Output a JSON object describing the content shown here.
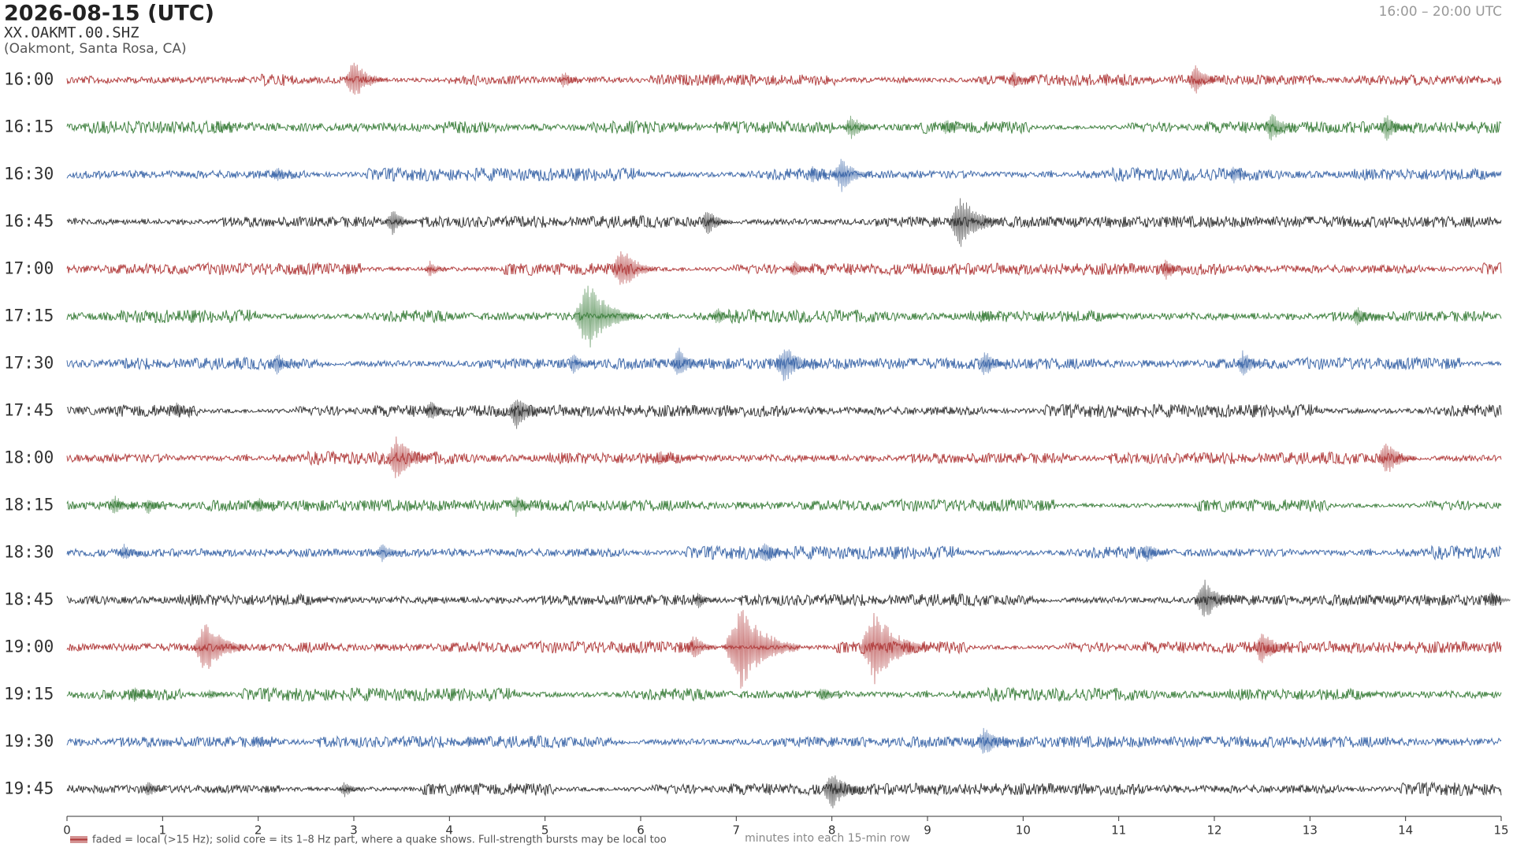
{
  "chart_data": {
    "type": "helicorder",
    "title": "2026-08-15  (UTC)",
    "subtitle": "XX.OAKMT.00.SHZ",
    "location": "(Oakmont, Santa Rosa, CA)",
    "time_range": "16:00 – 20:00 UTC",
    "x_label": "minutes into each 15-min row",
    "note": "faded = local (>15 Hz); solid core = its 1–8 Hz part, where a quake shows. Full-strength bursts may be local too",
    "xlim": [
      0,
      15
    ],
    "xticks": [
      0,
      1,
      2,
      3,
      4,
      5,
      6,
      7,
      8,
      9,
      10,
      11,
      12,
      13,
      14,
      15
    ],
    "series": [
      {
        "name": "16:00",
        "color": "#b03a3a",
        "x": [
          3.0,
          5.2,
          9.9,
          11.8
        ],
        "values": [
          0.45,
          0.2,
          0.2,
          0.35
        ]
      },
      {
        "name": "16:15",
        "color": "#3a7d3a",
        "x": [
          1.6,
          8.2,
          9.2,
          12.6,
          13.8
        ],
        "values": [
          0.15,
          0.3,
          0.2,
          0.35,
          0.3
        ]
      },
      {
        "name": "16:30",
        "color": "#3a65a8",
        "x": [
          2.2,
          7.8,
          8.1,
          12.2
        ],
        "values": [
          0.2,
          0.2,
          0.4,
          0.2
        ]
      },
      {
        "name": "16:45",
        "color": "#333333",
        "x": [
          3.4,
          6.7,
          9.35
        ],
        "values": [
          0.3,
          0.3,
          0.6
        ]
      },
      {
        "name": "17:00",
        "color": "#b03a3a",
        "x": [
          3.8,
          5.8,
          7.6,
          11.5
        ],
        "values": [
          0.2,
          0.5,
          0.2,
          0.25
        ]
      },
      {
        "name": "17:15",
        "color": "#3a7d3a",
        "x": [
          5.45,
          6.8,
          9.6,
          13.5
        ],
        "values": [
          0.75,
          0.2,
          0.15,
          0.25
        ]
      },
      {
        "name": "17:30",
        "color": "#3a65a8",
        "x": [
          2.2,
          5.3,
          6.4,
          7.5,
          9.6,
          12.3
        ],
        "values": [
          0.25,
          0.25,
          0.35,
          0.45,
          0.3,
          0.3
        ]
      },
      {
        "name": "17:45",
        "color": "#333333",
        "x": [
          1.15,
          3.8,
          4.7
        ],
        "values": [
          0.2,
          0.25,
          0.4
        ]
      },
      {
        "name": "18:00",
        "color": "#b03a3a",
        "x": [
          3.45,
          6.2,
          13.8
        ],
        "values": [
          0.5,
          0.2,
          0.4
        ]
      },
      {
        "name": "18:15",
        "color": "#3a7d3a",
        "x": [
          0.5,
          0.85,
          2.0,
          4.7
        ],
        "values": [
          0.25,
          0.2,
          0.2,
          0.25
        ]
      },
      {
        "name": "18:30",
        "color": "#3a65a8",
        "x": [
          0.6,
          3.3,
          7.3,
          11.3
        ],
        "values": [
          0.2,
          0.25,
          0.3,
          0.25
        ]
      },
      {
        "name": "18:45",
        "color": "#333333",
        "x": [
          6.6,
          11.9,
          14.9
        ],
        "values": [
          0.2,
          0.45,
          0.2
        ]
      },
      {
        "name": "19:00",
        "color": "#b03a3a",
        "x": [
          1.45,
          6.55,
          7.05,
          8.45,
          12.5
        ],
        "values": [
          0.6,
          0.3,
          0.9,
          0.8,
          0.4
        ]
      },
      {
        "name": "19:15",
        "color": "#3a7d3a",
        "x": [
          0.7,
          1.5,
          7.9
        ],
        "values": [
          0.2,
          0.15,
          0.2
        ]
      },
      {
        "name": "19:30",
        "color": "#3a65a8",
        "x": [
          2.0,
          4.2,
          9.6
        ],
        "values": [
          0.15,
          0.15,
          0.35
        ]
      },
      {
        "name": "19:45",
        "color": "#333333",
        "x": [
          0.85,
          2.9,
          8.0
        ],
        "values": [
          0.2,
          0.2,
          0.45
        ]
      }
    ]
  }
}
